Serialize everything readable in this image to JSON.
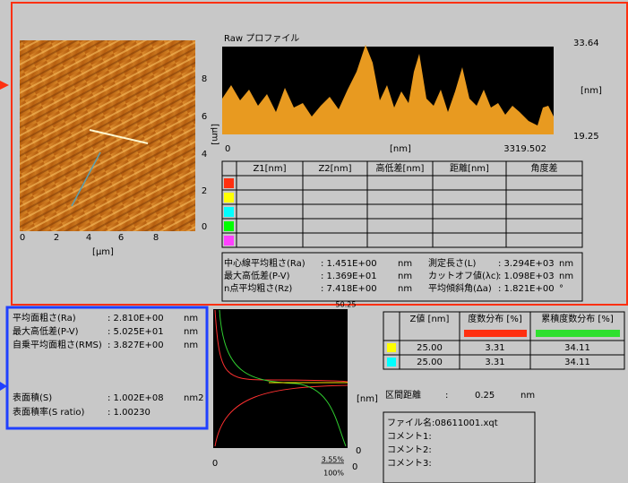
{
  "image": {
    "x_ticks": [
      "0",
      "2",
      "4",
      "6",
      "8"
    ],
    "y_ticks": [
      "8",
      "6",
      "4",
      "2",
      "0"
    ],
    "x_unit": "[µm]",
    "y_unit": "[µm]"
  },
  "profile": {
    "title": "Raw プロファイル",
    "y_max": "33.64",
    "y_unit": "[nm]",
    "y_min": "19.25",
    "x_min": "0",
    "x_unit": "[nm]",
    "x_max": "3319.502"
  },
  "line_table": {
    "headers": [
      "Z1[nm]",
      "Z2[nm]",
      "高低差[nm]",
      "距離[nm]",
      "角度差"
    ]
  },
  "line_stats": {
    "rows": [
      [
        "中心線平均粗さ(Ra)",
        ": 1.451E+00",
        "nm",
        "測定長さ(L)",
        ": 3.294E+03",
        "nm"
      ],
      [
        "最大高低差(P-V)",
        ": 1.369E+01",
        "nm",
        "カットオフ値(λc)",
        ": 1.098E+03",
        "nm"
      ],
      [
        "n点平均粗さ(Rz)",
        ": 7.418E+00",
        "nm",
        "平均傾斜角(Δa)",
        ": 1.821E+00",
        "°"
      ]
    ]
  },
  "area_stats": {
    "rows": [
      [
        "平均面粗さ(Ra)",
        ": 2.810E+00",
        "nm"
      ],
      [
        "最大高低差(P-V)",
        ": 5.025E+01",
        "nm"
      ],
      [
        "自乗平均面粗さ(RMS)",
        ": 3.827E+00",
        "nm"
      ],
      [
        "表面積(S)",
        ": 1.002E+08",
        "nm2"
      ],
      [
        "表面積率(S ratio)",
        ": 1.00230",
        ""
      ]
    ]
  },
  "histogram": {
    "top_label": "50.25",
    "unit": "[nm]",
    "right_labels": [
      "0",
      "0"
    ],
    "x_min": "0",
    "x_max_labels": [
      "3.55%",
      "100%"
    ]
  },
  "z_table": {
    "headers": [
      "Z値 [nm]",
      "度数分布 [%]",
      "累積度数分布 [%]"
    ],
    "rows": [
      [
        "25.00",
        "3.31",
        "34.11"
      ],
      [
        "25.00",
        "3.31",
        "34.11"
      ]
    ]
  },
  "interval": {
    "label": "区間距離",
    "separator": ":",
    "value": "0.25",
    "unit": "nm"
  },
  "file_info": {
    "lines": [
      "ファイル名:08611001.xqt",
      "コメント1:",
      "コメント2:",
      "コメント3:"
    ]
  }
}
